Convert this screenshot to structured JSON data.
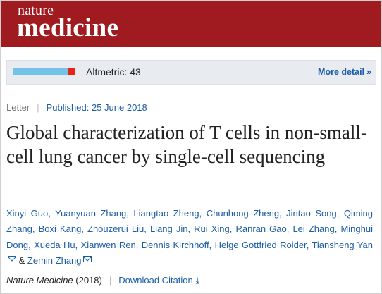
{
  "masthead": {
    "logo_top": "nature",
    "logo_bottom": "medicine",
    "bg_color": "#a01b1f"
  },
  "altmetric": {
    "label": "Altmetric: 43",
    "more_label": "More detail",
    "more_arrow": "»",
    "bar_color": "#73c3e8",
    "square_color": "#e8241a"
  },
  "meta": {
    "type": "Letter",
    "separator": "|",
    "published": "Published: 25 June 2018"
  },
  "article": {
    "title": "Global characterization of T cells in non-small-cell lung cancer by single-cell sequencing"
  },
  "authors": {
    "list": [
      "Xinyi Guo",
      "Yuanyuan Zhang",
      "Liangtao Zheng",
      "Chunhong Zheng",
      "Jintao Song",
      "Qiming Zhang",
      "Boxi Kang",
      "Zhouzerui Liu",
      "Liang Jin",
      "Rui Xing",
      "Ranran Gao",
      "Lei Zhang",
      "Minghui Dong",
      "Xueda Hu",
      "Xianwen Ren",
      "Dennis Kirchhoff",
      "Helge Gottfried Roider",
      "Tiansheng Yan",
      "Zemin Zhang"
    ],
    "comma": ",",
    "ampersand": "&"
  },
  "citation": {
    "journal": "Nature Medicine",
    "year": "(2018)",
    "separator": "|",
    "download_label": "Download Citation",
    "download_icon": "⤓"
  },
  "colors": {
    "link": "#1c5da6",
    "text": "#222222"
  }
}
